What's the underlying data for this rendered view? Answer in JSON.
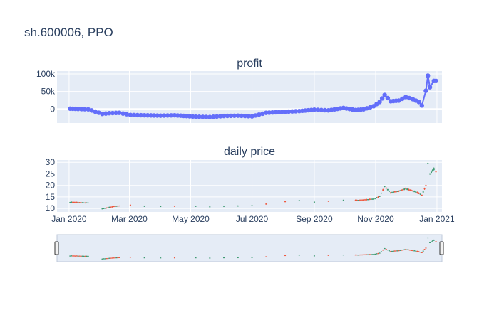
{
  "figure": {
    "title": "sh.600006, PPO"
  },
  "chart_data": [
    {
      "type": "line",
      "title": "profit",
      "ylim": [
        -40000,
        108000
      ],
      "ytick_labels": [
        "100k",
        "50k",
        "0"
      ],
      "ytick_values": [
        100000,
        50000,
        0
      ],
      "color": "#636efa",
      "grid": true,
      "series": [
        {
          "x": [
            "2020-01-02",
            "2020-01-10",
            "2020-01-20",
            "2020-02-03",
            "2020-02-10",
            "2020-02-20",
            "2020-03-02",
            "2020-03-16",
            "2020-04-01",
            "2020-04-15",
            "2020-05-06",
            "2020-05-20",
            "2020-06-03",
            "2020-06-17",
            "2020-07-01",
            "2020-07-15",
            "2020-08-03",
            "2020-08-17",
            "2020-09-01",
            "2020-09-15",
            "2020-09-30",
            "2020-10-12",
            "2020-10-20",
            "2020-10-30",
            "2020-11-05",
            "2020-11-10",
            "2020-11-16",
            "2020-11-24",
            "2020-12-01",
            "2020-12-08",
            "2020-12-14",
            "2020-12-17",
            "2020-12-21",
            "2020-12-23",
            "2020-12-25",
            "2020-12-29",
            "2020-12-31"
          ],
          "y": [
            1000,
            0,
            -1000,
            -14000,
            -12000,
            -11000,
            -17000,
            -18000,
            -19000,
            -18000,
            -22000,
            -23000,
            -20000,
            -19000,
            -21000,
            -11000,
            -8000,
            -6000,
            -2000,
            -4000,
            3000,
            -3000,
            -1000,
            8000,
            20000,
            40000,
            22000,
            24000,
            34000,
            28000,
            20000,
            10000,
            52000,
            95000,
            62000,
            80000,
            80000
          ]
        }
      ]
    },
    {
      "type": "candlestick",
      "title": "daily price",
      "ylim": [
        8.5,
        31
      ],
      "ytick_labels": [
        "30",
        "25",
        "20",
        "15",
        "10"
      ],
      "ytick_values": [
        30,
        25,
        20,
        15,
        10
      ],
      "xlim": [
        "2019-12-20",
        "2021-01-06"
      ],
      "xtick_labels": [
        "Jan 2020",
        "Mar 2020",
        "May 2020",
        "Jul 2020",
        "Sep 2020",
        "Nov 2020",
        "Jan 2021"
      ],
      "xtick_values": [
        "2020-01-01",
        "2020-03-01",
        "2020-05-01",
        "2020-07-01",
        "2020-09-01",
        "2020-11-01",
        "2021-01-01"
      ],
      "increasing_color": "#3d9970",
      "decreasing_color": "#ef553b",
      "grid": true,
      "rangeslider": true,
      "series": [
        {
          "x": [
            "2020-01-02",
            "2020-01-10",
            "2020-01-20",
            "2020-02-03",
            "2020-02-10",
            "2020-02-20",
            "2020-03-02",
            "2020-03-16",
            "2020-04-01",
            "2020-04-15",
            "2020-05-06",
            "2020-05-20",
            "2020-06-03",
            "2020-06-17",
            "2020-07-01",
            "2020-07-15",
            "2020-08-03",
            "2020-08-17",
            "2020-09-01",
            "2020-09-15",
            "2020-09-30",
            "2020-10-12",
            "2020-10-20",
            "2020-10-30",
            "2020-11-05",
            "2020-11-10",
            "2020-11-16",
            "2020-11-24",
            "2020-12-01",
            "2020-12-08",
            "2020-12-14",
            "2020-12-17",
            "2020-12-21",
            "2020-12-23",
            "2020-12-25",
            "2020-12-29",
            "2020-12-31"
          ],
          "y": [
            12.7,
            12.6,
            12.4,
            9.9,
            10.5,
            11.2,
            11.5,
            11.0,
            10.9,
            11.0,
            11.0,
            10.8,
            11.0,
            11.1,
            11.2,
            12.0,
            13.0,
            13.5,
            12.8,
            13.2,
            13.6,
            13.5,
            13.7,
            14.1,
            15.2,
            19.5,
            16.8,
            17.5,
            18.6,
            17.6,
            16.5,
            15.8,
            20.0,
            29.5,
            25.0,
            27.0,
            26.0
          ]
        }
      ]
    }
  ]
}
